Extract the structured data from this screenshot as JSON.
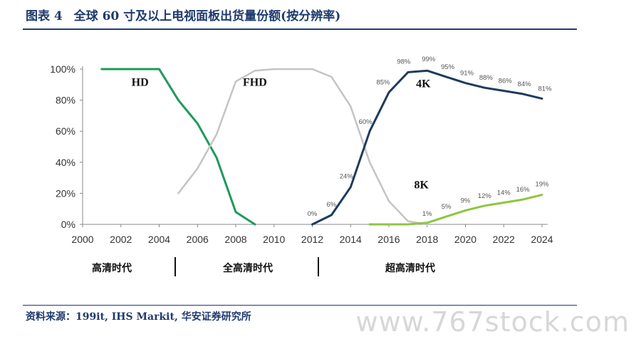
{
  "header": {
    "figure_no": "图表 4",
    "title": "全球 60 寸及以上电视面板出货量份额(按分辨率)"
  },
  "footer": {
    "source": "资料来源：199it, IHS Markit, 华安证券研究所",
    "watermark": "www.767stock.com"
  },
  "eras": [
    "高清时代",
    "全高清时代",
    "超高清时代"
  ],
  "chart_data": {
    "type": "line",
    "xlim": [
      2000,
      2024
    ],
    "ylim": [
      0,
      100
    ],
    "x_ticks": [
      "2000",
      "2002",
      "2004",
      "2006",
      "2008",
      "2010",
      "2012",
      "2014",
      "2016",
      "2018",
      "2020",
      "2022",
      "2024"
    ],
    "y_ticks": [
      "0%",
      "20%",
      "40%",
      "60%",
      "80%",
      "100%"
    ],
    "grid": false,
    "series": [
      {
        "name": "HD",
        "color": "#1e9a5a",
        "x": [
          2001,
          2002,
          2003,
          2004,
          2005,
          2006,
          2007,
          2008,
          2009
        ],
        "y": [
          100,
          100,
          100,
          100,
          80,
          65,
          43,
          8,
          0
        ]
      },
      {
        "name": "FHD",
        "color": "#c4c4c4",
        "x": [
          2005,
          2006,
          2007,
          2008,
          2009,
          2010,
          2011,
          2012,
          2013,
          2014,
          2015,
          2016,
          2017,
          2018
        ],
        "y": [
          20,
          36,
          58,
          92,
          99,
          100,
          100,
          100,
          95,
          76,
          40,
          15,
          2,
          0
        ]
      },
      {
        "name": "4K",
        "color": "#1d3b5e",
        "x": [
          2012,
          2013,
          2014,
          2015,
          2016,
          2017,
          2018,
          2019,
          2020,
          2021,
          2022,
          2023,
          2024
        ],
        "y": [
          0,
          6,
          24,
          60,
          85,
          98,
          99,
          95,
          91,
          88,
          86,
          84,
          81
        ],
        "labels": [
          "0%",
          "6%",
          "24%",
          "60%",
          "85%",
          "98%",
          "99%",
          "95%",
          "91%",
          "88%",
          "86%",
          "84%",
          "81%"
        ]
      },
      {
        "name": "8K",
        "color": "#8cc63f",
        "x": [
          2015,
          2016,
          2017,
          2018,
          2019,
          2020,
          2021,
          2022,
          2023,
          2024
        ],
        "y": [
          0,
          0,
          0,
          1,
          5,
          9,
          12,
          14,
          16,
          19
        ],
        "labels": [
          "",
          "",
          "",
          "1%",
          "5%",
          "9%",
          "12%",
          "14%",
          "16%",
          "19%"
        ]
      }
    ]
  }
}
